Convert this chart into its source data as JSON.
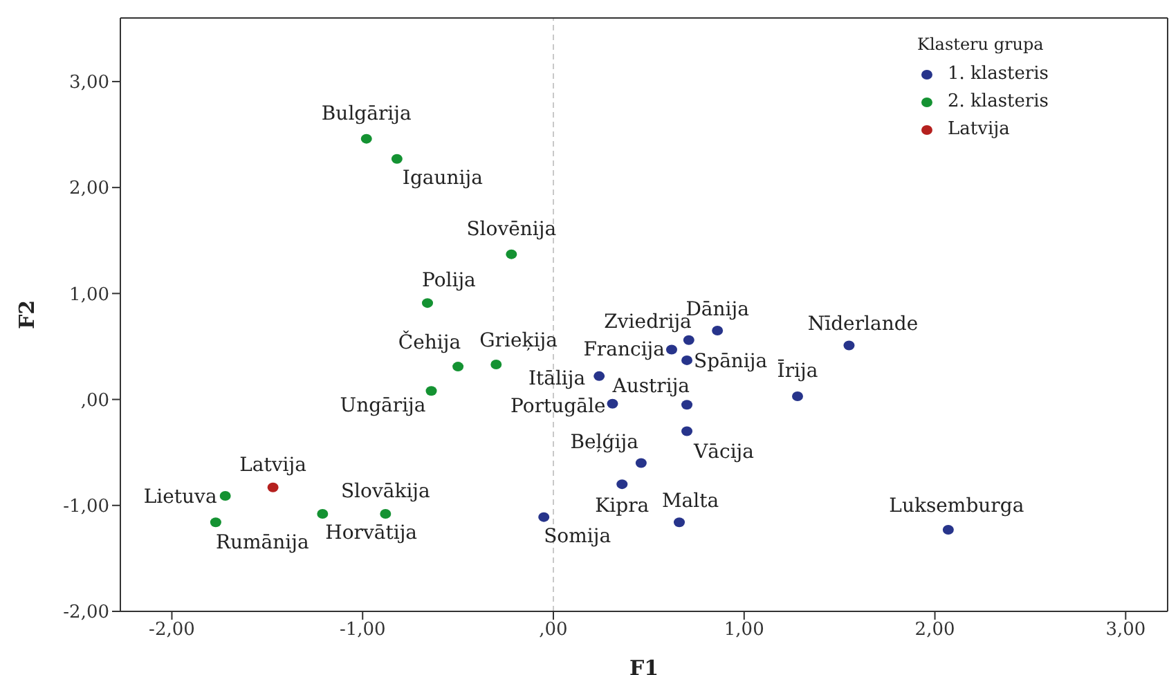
{
  "chart_data": {
    "type": "scatter",
    "xlabel": "F1",
    "ylabel": "F2",
    "legend_title": "Klasteru grupa",
    "legend": "top right",
    "marker": "circle",
    "grid": false,
    "xlim": [
      -2.27,
      3.22
    ],
    "ylim": [
      -2,
      3.6
    ],
    "xticks": [
      {
        "value": -2,
        "label": "-2,00"
      },
      {
        "value": -1,
        "label": "-1,00"
      },
      {
        "value": 0,
        "label": ",00"
      },
      {
        "value": 1,
        "label": "1,00"
      },
      {
        "value": 2,
        "label": "2,00"
      },
      {
        "value": 3,
        "label": "3,00"
      }
    ],
    "yticks": [
      {
        "value": -2,
        "label": "-2,00"
      },
      {
        "value": -1,
        "label": "-1,00"
      },
      {
        "value": 0,
        "label": ",00"
      },
      {
        "value": 1,
        "label": "1,00"
      },
      {
        "value": 2,
        "label": "2,00"
      },
      {
        "value": 3,
        "label": "3,00"
      }
    ],
    "ref_lines": [
      {
        "axis": "x",
        "value": 0,
        "color": "#c8c8c8",
        "line_style": "dashed"
      }
    ],
    "series": [
      {
        "name": "1. klasteris",
        "color": "#27348b",
        "x": [
          -0.05,
          0.24,
          0.31,
          0.62,
          0.71,
          0.7,
          0.86,
          1.55,
          1.28,
          0.7,
          0.7,
          0.46,
          0.36,
          0.66,
          2.07
        ],
        "values": [
          -1.11,
          0.22,
          -0.04,
          0.47,
          0.56,
          0.37,
          0.65,
          0.51,
          0.03,
          -0.05,
          -0.3,
          -0.6,
          -0.8,
          -1.16,
          -1.23
        ],
        "value_labels": [
          "Somija",
          "Itālija",
          "Portugāle",
          "Francija",
          "Zviedrija",
          "Spānija",
          "Dānija",
          "Nīderlande",
          "Īrija",
          "Austrija",
          "Vācija",
          "Beļģija",
          "Kipra",
          "Malta",
          "Luksemburga"
        ]
      },
      {
        "name": "2. klasteris",
        "color": "#149232",
        "x": [
          -0.98,
          -0.82,
          -0.22,
          -0.66,
          -0.5,
          -0.3,
          -0.64,
          -1.72,
          -1.77,
          -1.21,
          -0.88
        ],
        "values": [
          2.46,
          2.27,
          1.37,
          0.91,
          0.31,
          0.33,
          0.08,
          -0.91,
          -1.16,
          -1.08,
          -1.08
        ],
        "value_labels": [
          "Bulgārija",
          "Igaunija",
          "Slovēnija",
          "Polija",
          "Čehija",
          "Grieķija",
          "Ungārija",
          "Lietuva",
          "Rumānija",
          "Horvātija",
          "Slovākija"
        ]
      },
      {
        "name": "Latvija",
        "color": "#b5201e",
        "x": [
          -1.47
        ],
        "values": [
          -0.83
        ],
        "value_labels": [
          "Latvija"
        ]
      }
    ]
  }
}
